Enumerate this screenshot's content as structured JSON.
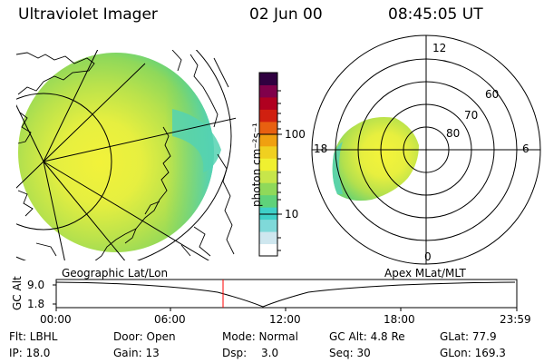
{
  "header": {
    "instrument": "Ultraviolet Imager",
    "date": "02 Jun 00",
    "time": "08:45:05 UT"
  },
  "colorbar": {
    "unit_label": "photon cm⁻²s⁻¹",
    "tick_labels": [
      "100",
      "10"
    ],
    "colors": [
      "#ffffff",
      "#cfe7ef",
      "#7fd9d9",
      "#3fd0c8",
      "#5fd27a",
      "#8fd95a",
      "#c7e64a",
      "#f0f030",
      "#f0d020",
      "#f0a010",
      "#e86010",
      "#d02010",
      "#b00020",
      "#80004a",
      "#300040"
    ]
  },
  "geo_panel": {
    "label": "Geographic Lat/Lon"
  },
  "polar_panel": {
    "label": "Apex MLat/MLT",
    "mlt_labels": {
      "top": "12",
      "right": "6",
      "bottom": "0",
      "left": "18"
    },
    "lat_labels": [
      "60",
      "70",
      "80"
    ]
  },
  "altitude_plot": {
    "ylabel": "GC Alt",
    "yticks": [
      "9.0",
      "1.8"
    ],
    "xticks": [
      "00:00",
      "06:00",
      "12:00",
      "18:00",
      "23:59"
    ],
    "marker_color": "#ff0000"
  },
  "info": {
    "flt": "Flt: LBHL",
    "ip": "IP: 18.0",
    "door": "Door: Open",
    "gain": "Gain: 13",
    "mode": "Mode: Normal",
    "dsp_label": "Dsp:",
    "dsp_value": "3.0",
    "gc_alt": "GC Alt: 4.8 Re",
    "seq": "Seq: 30",
    "glat": "GLat: 77.9",
    "glon": "GLon: 169.3"
  }
}
